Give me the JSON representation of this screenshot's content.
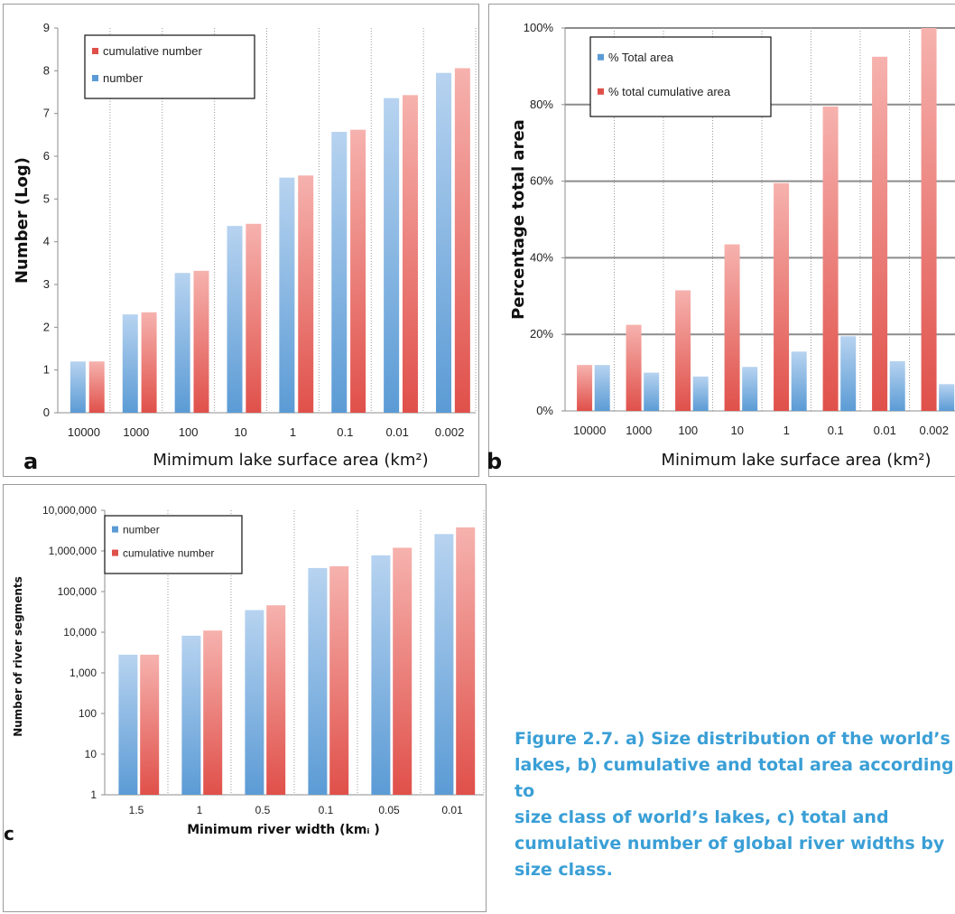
{
  "colors": {
    "blue": "#5b9bd5",
    "blue_light": "#b7d3f0",
    "red": "#e0504a",
    "red_light": "#f6b2ae",
    "grid": "#9a9a9a",
    "caption": "#3a9fd6"
  },
  "chart_data": [
    {
      "id": "a",
      "panel_label": "a",
      "type": "bar",
      "categories": [
        "10000",
        "1000",
        "100",
        "10",
        "1",
        "0.1",
        "0.01",
        "0.002"
      ],
      "series": [
        {
          "name": "number",
          "color": "blue",
          "values": [
            1.2,
            2.3,
            3.27,
            4.37,
            5.5,
            6.57,
            7.36,
            7.95
          ]
        },
        {
          "name": "cumulative number",
          "color": "red",
          "values": [
            1.2,
            2.35,
            3.32,
            4.42,
            5.55,
            6.62,
            7.43,
            8.06
          ]
        }
      ],
      "legend_order": [
        "cumulative number",
        "number"
      ],
      "legend_position": "top-left",
      "ylim": [
        0,
        9
      ],
      "yticks": [
        "0",
        "1",
        "2",
        "3",
        "4",
        "5",
        "6",
        "7",
        "8",
        "9"
      ],
      "ylabel": "Number (Log)",
      "xlabel": "Mimimum lake surface area (km²)",
      "grid": "vertical-dotted"
    },
    {
      "id": "b",
      "panel_label": "b",
      "type": "bar",
      "categories": [
        "10000",
        "1000",
        "100",
        "10",
        "1",
        "0.1",
        "0.01",
        "0.002"
      ],
      "series": [
        {
          "name": "% total cumulative area",
          "color": "red",
          "values": [
            12,
            22.5,
            31.5,
            43.5,
            59.5,
            79.5,
            92.5,
            100
          ]
        },
        {
          "name": "% Total area",
          "color": "blue",
          "values": [
            12,
            10,
            9,
            11.5,
            15.5,
            19.5,
            13,
            7
          ]
        }
      ],
      "legend_order": [
        "% Total area",
        "% total cumulative area"
      ],
      "legend_position": "top-left",
      "ylim": [
        0,
        100
      ],
      "yticks": [
        "0%",
        "20%",
        "40%",
        "60%",
        "80%",
        "100%"
      ],
      "ylabel": "Percentage total area",
      "xlabel": "Minimum lake surface area (km²)",
      "grid": "horizontal-solid and vertical-dotted"
    },
    {
      "id": "c",
      "panel_label": "c",
      "type": "bar",
      "yscale": "log",
      "categories": [
        "1.5",
        "1",
        "0.5",
        "0.1",
        "0.05",
        "0.01"
      ],
      "series": [
        {
          "name": "number",
          "color": "blue",
          "values": [
            2800,
            8200,
            35000,
            380000,
            780000,
            2600000
          ]
        },
        {
          "name": "cumulative number",
          "color": "red",
          "values": [
            2800,
            11000,
            46000,
            420000,
            1200000,
            3800000
          ]
        }
      ],
      "legend_order": [
        "number",
        "cumulative number"
      ],
      "legend_position": "top-left",
      "ylim": [
        1,
        10000000
      ],
      "yticks": [
        "1",
        "10",
        "100",
        "1,000",
        "10,000",
        "100,000",
        "1,000,000",
        "10,000,000"
      ],
      "ylabel": "Number of river segments",
      "xlabel": "Minimum river width (kmᵢ )",
      "grid": "vertical-dotted"
    }
  ],
  "caption": "Figure 2.7.  a) Size distribution of the world’s\nlakes, b) cumulative and total area according to\nsize class of world’s lakes, c) total and\ncumulative number of global river widths by\nsize class."
}
